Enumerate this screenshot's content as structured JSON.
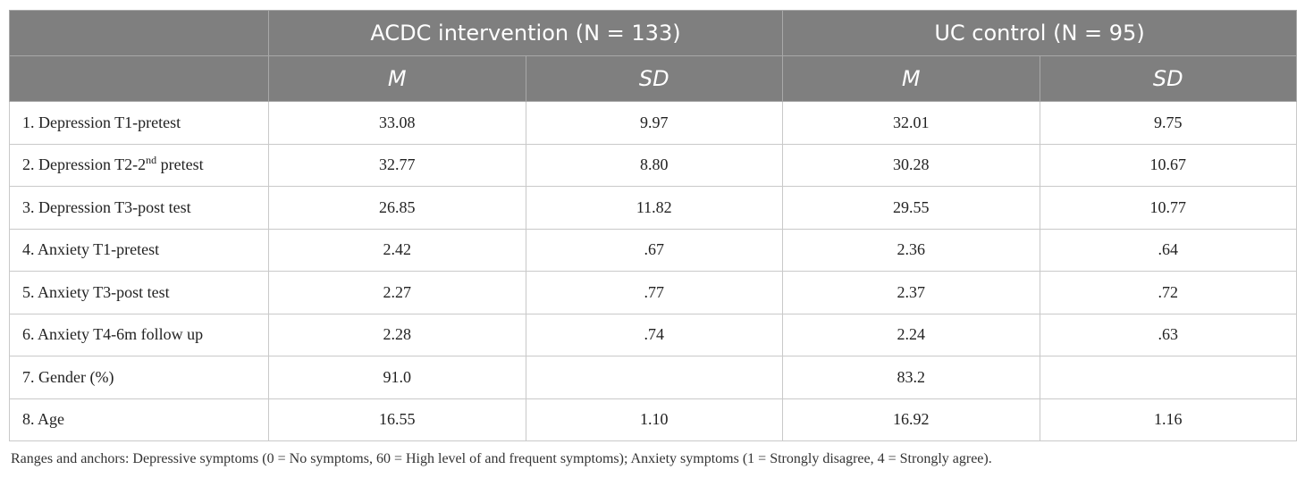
{
  "table": {
    "header_groups": [
      "",
      "ACDC intervention (N = 133)",
      "UC control (N = 95)"
    ],
    "subheaders": [
      "M",
      "SD",
      "M",
      "SD"
    ],
    "rows": [
      {
        "label": "1. Depression T1-pretest",
        "cells": [
          "33.08",
          "9.97",
          "32.01",
          "9.75"
        ]
      },
      {
        "label_pre": "2. Depression T2-2",
        "label_sup": "nd",
        "label_post": " pretest",
        "cells": [
          "32.77",
          "8.80",
          "30.28",
          "10.67"
        ]
      },
      {
        "label": "3. Depression T3-post test",
        "cells": [
          "26.85",
          "11.82",
          "29.55",
          "10.77"
        ]
      },
      {
        "label": "4. Anxiety T1-pretest",
        "cells": [
          "2.42",
          ".67",
          "2.36",
          ".64"
        ]
      },
      {
        "label": "5. Anxiety T3-post test",
        "cells": [
          "2.27",
          ".77",
          "2.37",
          ".72"
        ]
      },
      {
        "label": "6. Anxiety T4-6m follow up",
        "cells": [
          "2.28",
          ".74",
          "2.24",
          ".63"
        ]
      },
      {
        "label": "7. Gender (%)",
        "cells": [
          "91.0",
          "",
          "83.2",
          ""
        ]
      },
      {
        "label": "8. Age",
        "cells": [
          "16.55",
          "1.10",
          "16.92",
          "1.16"
        ]
      }
    ]
  },
  "note": "Ranges and anchors: Depressive symptoms (0 = No symptoms, 60 = High level of and frequent symptoms); Anxiety symptoms (1 = Strongly disagree, 4 = Strongly agree).",
  "colors": {
    "header_bg": "#7f7f7f",
    "header_text": "#ffffff",
    "grid": "#c9c9c9"
  }
}
